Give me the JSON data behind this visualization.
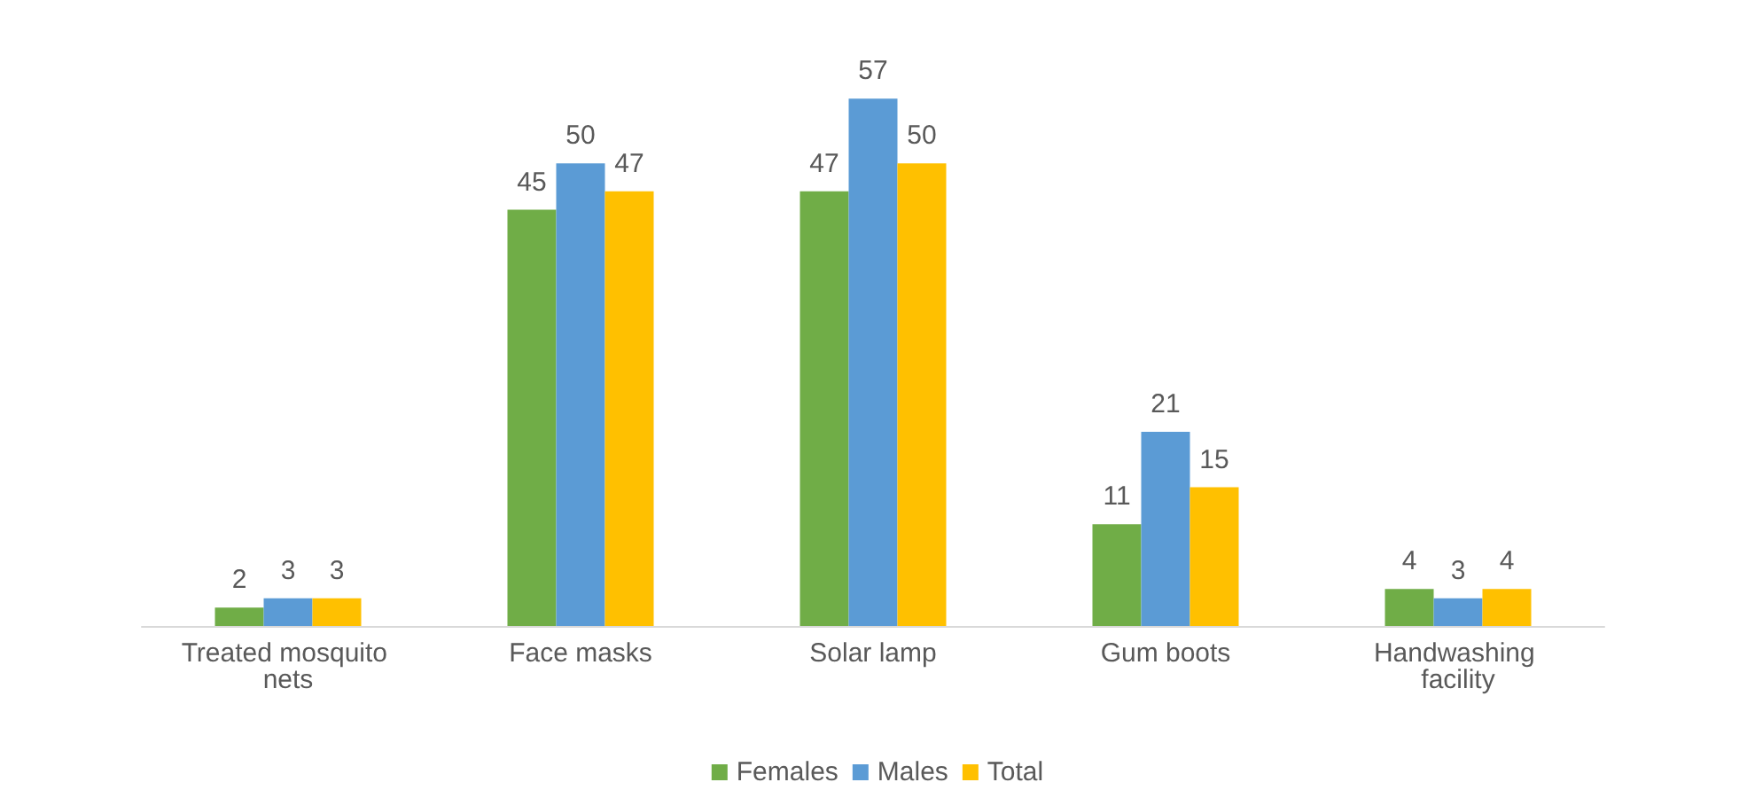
{
  "chart_data": {
    "type": "bar",
    "categories": [
      "Treated mosquito nets",
      "Face masks",
      "Solar lamp",
      "Gum boots",
      "Handwashing facility"
    ],
    "series": [
      {
        "name": "Females",
        "color": "#70ad47",
        "values": [
          2,
          45,
          47,
          11,
          4
        ]
      },
      {
        "name": "Males",
        "color": "#5b9bd5",
        "values": [
          3,
          50,
          57,
          21,
          3
        ]
      },
      {
        "name": "Total",
        "color": "#ffc000",
        "values": [
          3,
          47,
          50,
          15,
          4
        ]
      }
    ],
    "data_labels": true,
    "legend": "bottom",
    "tick_labels": "x"
  }
}
